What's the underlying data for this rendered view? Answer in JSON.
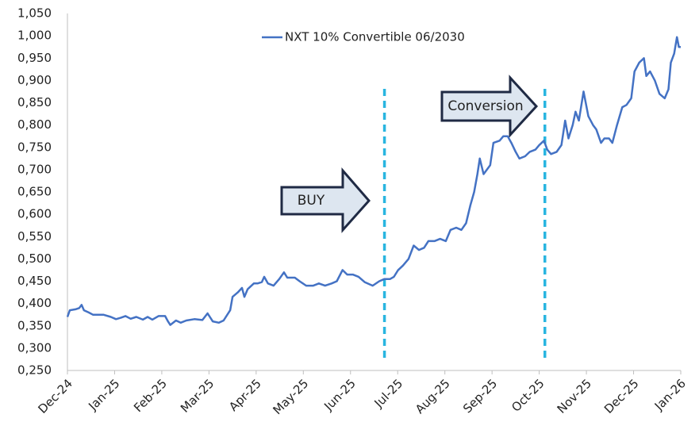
{
  "chart_data": {
    "type": "line",
    "legend_position": "top",
    "annotations": [
      "BUY",
      "Conversion"
    ],
    "vlines": [
      6.72,
      10.12
    ],
    "vline_color": "#29b5e0",
    "x": [
      0,
      0.05,
      0.17,
      0.25,
      0.3,
      0.35,
      0.45,
      0.54,
      0.76,
      0.92,
      1.03,
      1.13,
      1.23,
      1.34,
      1.46,
      1.6,
      1.7,
      1.8,
      1.93,
      2.07,
      2.13,
      2.18,
      2.3,
      2.4,
      2.52,
      2.69,
      2.86,
      2.97,
      3.08,
      3.21,
      3.31,
      3.45,
      3.5,
      3.61,
      3.7,
      3.75,
      3.82,
      3.95,
      4.03,
      4.12,
      4.17,
      4.25,
      4.37,
      4.49,
      4.59,
      4.66,
      4.82,
      4.92,
      5.06,
      5.21,
      5.33,
      5.46,
      5.6,
      5.71,
      5.83,
      5.93,
      6.05,
      6.17,
      6.3,
      6.47,
      6.61,
      6.72,
      6.84,
      6.92,
      7.01,
      7.11,
      7.23,
      7.34,
      7.45,
      7.56,
      7.65,
      7.78,
      7.9,
      8.02,
      8.12,
      8.24,
      8.35,
      8.45,
      8.54,
      8.62,
      8.69,
      8.74,
      8.82,
      8.96,
      9.03,
      9.16,
      9.24,
      9.33,
      9.41,
      9.5,
      9.58,
      9.7,
      9.8,
      9.92,
      10.0,
      10.1,
      10.17,
      10.25,
      10.37,
      10.47,
      10.55,
      10.62,
      10.71,
      10.77,
      10.84,
      10.94,
      11.04,
      11.14,
      11.21,
      11.31,
      11.38,
      11.48,
      11.55,
      11.65,
      11.76,
      11.85,
      11.95,
      12.02,
      12.12,
      12.22,
      12.27,
      12.35,
      12.45,
      12.55,
      12.66,
      12.74,
      12.79,
      12.86,
      12.92,
      12.96,
      13.0
    ],
    "series": [
      {
        "name": "NXT 10% Convertible 06/2030",
        "color": "#4472c4",
        "values": [
          0.37,
          0.385,
          0.387,
          0.39,
          0.397,
          0.385,
          0.38,
          0.375,
          0.375,
          0.37,
          0.365,
          0.368,
          0.372,
          0.366,
          0.37,
          0.364,
          0.37,
          0.364,
          0.372,
          0.372,
          0.36,
          0.352,
          0.362,
          0.357,
          0.362,
          0.365,
          0.363,
          0.378,
          0.36,
          0.357,
          0.362,
          0.385,
          0.415,
          0.425,
          0.435,
          0.415,
          0.432,
          0.445,
          0.445,
          0.448,
          0.46,
          0.445,
          0.44,
          0.455,
          0.47,
          0.458,
          0.458,
          0.45,
          0.44,
          0.44,
          0.445,
          0.44,
          0.445,
          0.45,
          0.475,
          0.465,
          0.465,
          0.46,
          0.448,
          0.44,
          0.45,
          0.455,
          0.455,
          0.46,
          0.475,
          0.485,
          0.5,
          0.53,
          0.52,
          0.525,
          0.54,
          0.54,
          0.545,
          0.54,
          0.565,
          0.57,
          0.565,
          0.58,
          0.62,
          0.65,
          0.69,
          0.725,
          0.69,
          0.71,
          0.76,
          0.765,
          0.775,
          0.775,
          0.76,
          0.74,
          0.725,
          0.73,
          0.74,
          0.745,
          0.755,
          0.765,
          0.745,
          0.735,
          0.74,
          0.755,
          0.81,
          0.77,
          0.8,
          0.83,
          0.81,
          0.875,
          0.82,
          0.8,
          0.79,
          0.76,
          0.77,
          0.77,
          0.76,
          0.8,
          0.84,
          0.845,
          0.86,
          0.92,
          0.94,
          0.95,
          0.91,
          0.92,
          0.9,
          0.87,
          0.86,
          0.88,
          0.94,
          0.96,
          0.997,
          0.975,
          0.975
        ]
      }
    ],
    "xlim": [
      0,
      13
    ],
    "xticks": [
      {
        "value": 0,
        "label": "Dec-24"
      },
      {
        "value": 1,
        "label": "Jan-25"
      },
      {
        "value": 2,
        "label": "Feb-25"
      },
      {
        "value": 3,
        "label": "Mar-25"
      },
      {
        "value": 4,
        "label": "Apr-25"
      },
      {
        "value": 5,
        "label": "May-25"
      },
      {
        "value": 6,
        "label": "Jun-25"
      },
      {
        "value": 7,
        "label": "Jul-25"
      },
      {
        "value": 8,
        "label": "Aug-25"
      },
      {
        "value": 9,
        "label": "Sep-25"
      },
      {
        "value": 10,
        "label": "Oct-25"
      },
      {
        "value": 11,
        "label": "Nov-25"
      },
      {
        "value": 12,
        "label": "Dec-25"
      },
      {
        "value": 13,
        "label": "Jan-26"
      }
    ],
    "ylim": [
      0.25,
      1.05
    ],
    "yticks": [
      {
        "value": 0.25,
        "label": "0,250"
      },
      {
        "value": 0.3,
        "label": "0,300"
      },
      {
        "value": 0.35,
        "label": "0,350"
      },
      {
        "value": 0.4,
        "label": "0,400"
      },
      {
        "value": 0.45,
        "label": "0,450"
      },
      {
        "value": 0.5,
        "label": "0,500"
      },
      {
        "value": 0.55,
        "label": "0,550"
      },
      {
        "value": 0.6,
        "label": "0,600"
      },
      {
        "value": 0.65,
        "label": "0,650"
      },
      {
        "value": 0.7,
        "label": "0,700"
      },
      {
        "value": 0.75,
        "label": "0,750"
      },
      {
        "value": 0.8,
        "label": "0,800"
      },
      {
        "value": 0.85,
        "label": "0,850"
      },
      {
        "value": 0.9,
        "label": "0,900"
      },
      {
        "value": 0.95,
        "label": "0,950"
      },
      {
        "value": 1.0,
        "label": "1,000"
      },
      {
        "value": 1.05,
        "label": "1,050"
      }
    ],
    "grid": false
  }
}
